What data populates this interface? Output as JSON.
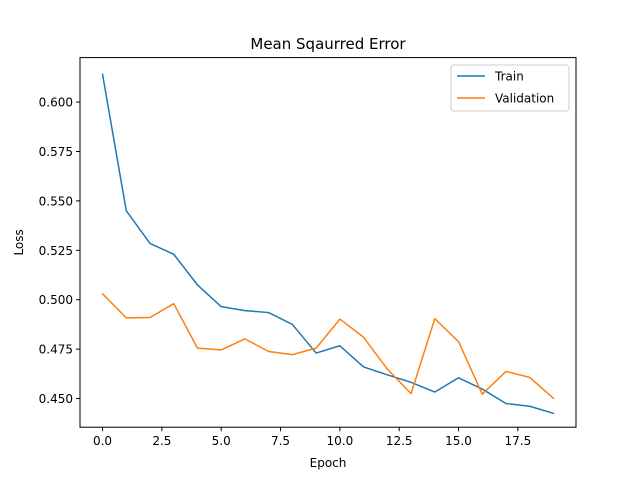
{
  "chart_data": {
    "type": "line",
    "title": "Mean Sqaurred Error",
    "xlabel": "Epoch",
    "ylabel": "Loss",
    "xlim": [
      -0.95,
      19.95
    ],
    "ylim": [
      0.4355,
      0.6225
    ],
    "xticks": [
      0,
      2.5,
      5,
      7.5,
      10,
      12.5,
      15,
      17.5
    ],
    "xtick_labels": [
      "0.0",
      "2.5",
      "5.0",
      "7.5",
      "10.0",
      "12.5",
      "15.0",
      "17.5"
    ],
    "yticks": [
      0.45,
      0.475,
      0.5,
      0.525,
      0.55,
      0.575,
      0.6
    ],
    "ytick_labels": [
      "0.450",
      "0.475",
      "0.500",
      "0.525",
      "0.550",
      "0.575",
      "0.600"
    ],
    "grid": false,
    "legend_position": "top-right",
    "x": [
      0,
      1,
      2,
      3,
      4,
      5,
      6,
      7,
      8,
      9,
      10,
      11,
      12,
      13,
      14,
      15,
      16,
      17,
      18,
      19
    ],
    "series": [
      {
        "name": "Train",
        "color": "#1f77b4",
        "values": [
          0.614,
          0.545,
          0.5285,
          0.523,
          0.5075,
          0.4965,
          0.4945,
          0.4935,
          0.4875,
          0.473,
          0.4767,
          0.466,
          0.462,
          0.4582,
          0.4533,
          0.4605,
          0.4548,
          0.4475,
          0.4461,
          0.4425
        ]
      },
      {
        "name": "Validation",
        "color": "#ff7f0e",
        "values": [
          0.503,
          0.4908,
          0.491,
          0.498,
          0.4755,
          0.4746,
          0.4802,
          0.4738,
          0.4722,
          0.4755,
          0.4902,
          0.481,
          0.4649,
          0.4525,
          0.4904,
          0.4788,
          0.4522,
          0.4637,
          0.4607,
          0.4501
        ]
      }
    ]
  }
}
